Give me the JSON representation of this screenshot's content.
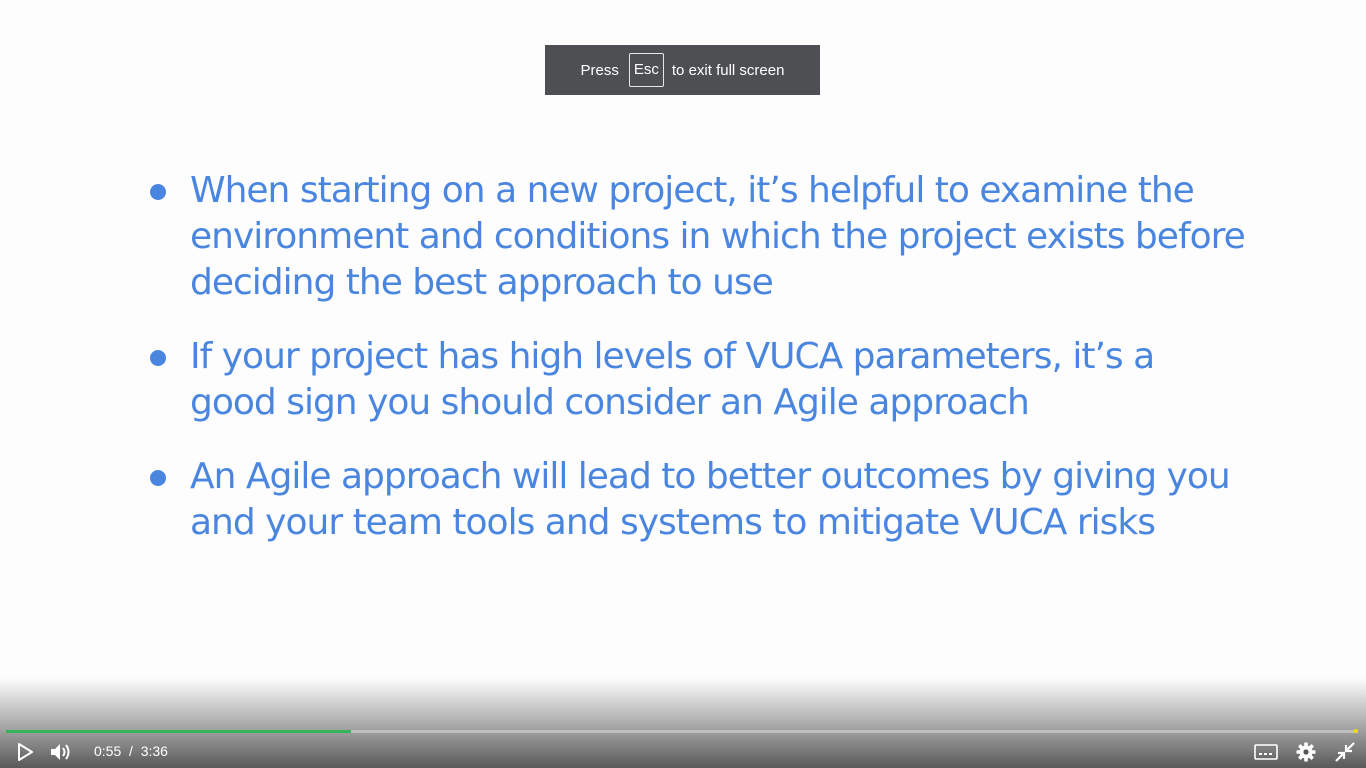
{
  "toast": {
    "prefix": "Press",
    "key": "Esc",
    "suffix": "to exit full screen"
  },
  "slide": {
    "bullets": [
      "When starting on a new project, it’s helpful to examine the environment and conditions in which the project exists before deciding the best approach to use",
      "If your project has high levels of VUCA parameters, it’s a good sign you should consider an Agile approach",
      "An Agile approach will lead to better outcomes by giving you and your team tools and systems to mitigate VUCA risks"
    ],
    "text_color": "#4a86e0"
  },
  "player": {
    "current_time": "0:55",
    "separator": "/",
    "duration": "3:36",
    "progress_fraction": 0.255,
    "progress_color": "#35b559",
    "icons": {
      "play": "play-icon",
      "volume": "volume-icon",
      "captions": "captions-icon",
      "settings": "gear-icon",
      "exit_fullscreen": "exit-fullscreen-icon"
    }
  }
}
